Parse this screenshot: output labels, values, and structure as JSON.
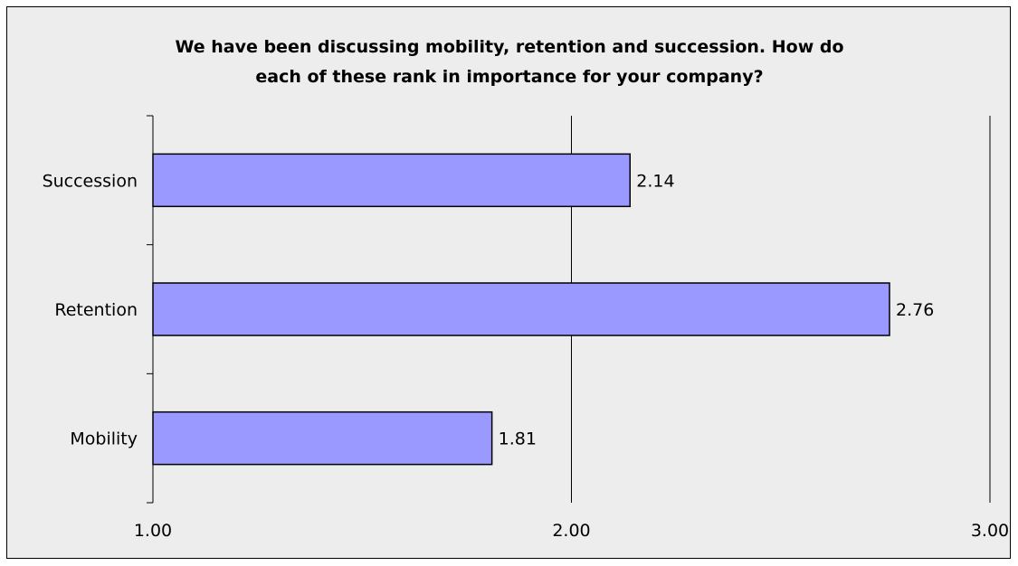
{
  "chart_data": {
    "type": "bar",
    "orientation": "horizontal",
    "title": "We have been discussing  mobility, retention and succession.  How do\neach of these rank in importance for your company?",
    "categories": [
      "Succession",
      "Retention",
      "Mobility"
    ],
    "values": [
      2.14,
      2.76,
      1.81
    ],
    "value_labels": [
      "2.14",
      "2.76",
      "1.81"
    ],
    "xlim": [
      1.0,
      3.0
    ],
    "xticks": [
      1.0,
      2.0,
      3.0
    ],
    "xtick_labels": [
      "1.00",
      "2.00",
      "3.00"
    ],
    "grid": true,
    "legend": "none",
    "colors": {
      "bar_fill": "#9999ff",
      "bar_edge": "#000000",
      "plot_background": "#ededed",
      "gridline": "#000000"
    }
  }
}
